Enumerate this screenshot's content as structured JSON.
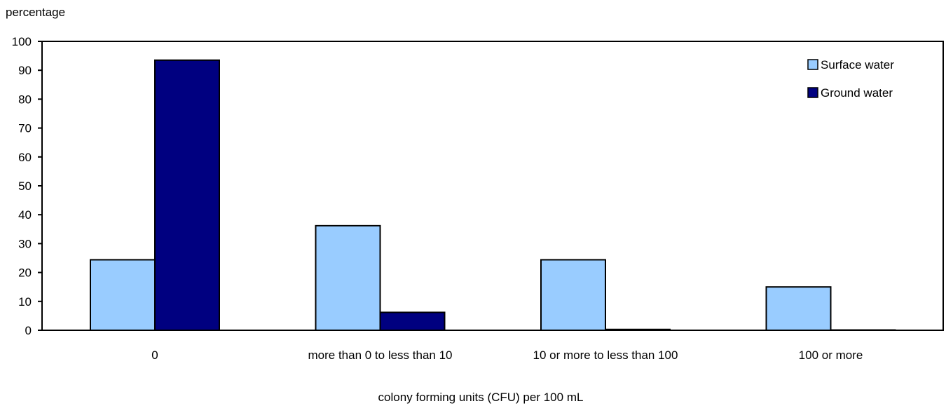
{
  "chart_data": {
    "type": "bar",
    "ylabel": "percentage",
    "xlabel": "colony forming units (CFU) per 100 mL",
    "categories": [
      "0",
      "more than 0 to less than 10",
      "10 or more to less than 100",
      "100 or more"
    ],
    "series": [
      {
        "name": "Surface water",
        "values": [
          24.4,
          36.2,
          24.4,
          15.0
        ],
        "color": "#99ccff"
      },
      {
        "name": "Ground water",
        "values": [
          93.5,
          6.2,
          0.3,
          0.1
        ],
        "color": "#000080"
      }
    ],
    "ylim": [
      0,
      100
    ],
    "yticks": [
      0,
      10,
      20,
      30,
      40,
      50,
      60,
      70,
      80,
      90,
      100
    ],
    "legend_position": "top-right",
    "grid": false
  }
}
